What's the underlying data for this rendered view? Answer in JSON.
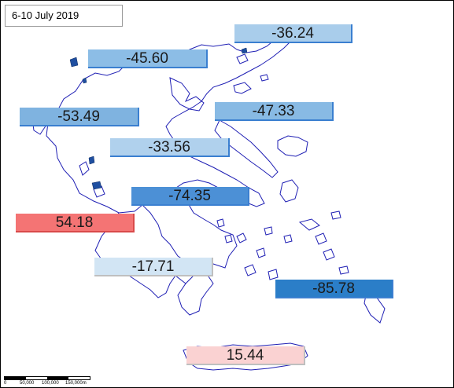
{
  "title": "6-10 July 2019",
  "colors": {
    "coast": "#1f1fb4",
    "island_fill": "#1f4fa0",
    "positive_strong": "#f47474",
    "positive_weak": "#fad2d2",
    "negative_light": "#cfe3f3",
    "negative_mid": "#a9cdeb",
    "negative_medium": "#7fb3e0",
    "negative_strong": "#3d8bd6",
    "negative_strongest": "#2b7ec8"
  },
  "regions": [
    {
      "value": "-36.24",
      "color": "#a9cdeb"
    },
    {
      "value": "-45.60",
      "color": "#8cbde6"
    },
    {
      "value": "-53.49",
      "color": "#7fb3e0"
    },
    {
      "value": "-47.33",
      "color": "#88bae4"
    },
    {
      "value": "-33.56",
      "color": "#b0d1ed"
    },
    {
      "value": "-74.35",
      "color": "#4c90d6"
    },
    {
      "value": "54.18",
      "color": "#f47474"
    },
    {
      "value": "-17.71",
      "color": "#d2e5f4"
    },
    {
      "value": "-85.78",
      "color": "#2b7ec8"
    },
    {
      "value": "15.44",
      "color": "#fad2d2"
    }
  ],
  "scale": {
    "ticks": [
      "0",
      "50,000",
      "100,000",
      "150,000m"
    ]
  }
}
